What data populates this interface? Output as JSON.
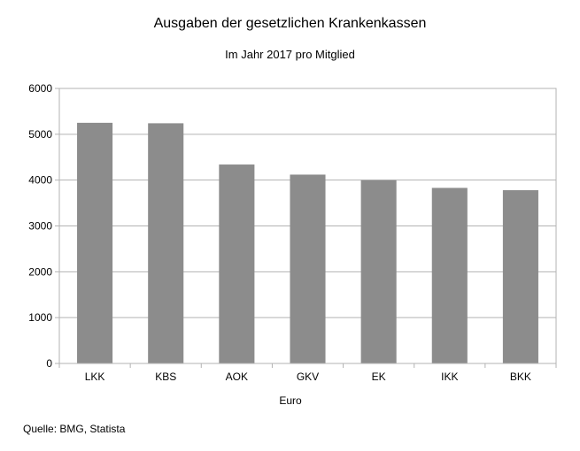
{
  "chart_data": {
    "type": "bar",
    "title": "Ausgaben der gesetzlichen Krankenkassen",
    "subtitle": "Im Jahr 2017 pro Mitglied",
    "xlabel": "Euro",
    "ylabel": "",
    "categories": [
      "LKK",
      "KBS",
      "AOK",
      "GKV",
      "EK",
      "IKK",
      "BKK"
    ],
    "values": [
      5250,
      5240,
      4340,
      4120,
      4000,
      3830,
      3780
    ],
    "ylim": [
      0,
      6000
    ],
    "yticks": [
      "0",
      "1000",
      "2000",
      "3000",
      "4000",
      "5000",
      "6000"
    ],
    "grid": true,
    "bar_color": "#8c8c8c",
    "grid_color": "#b3b3b3"
  },
  "source": "Quelle: BMG, Statista"
}
